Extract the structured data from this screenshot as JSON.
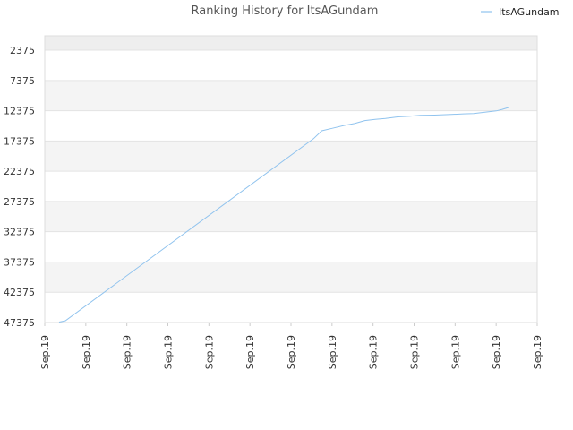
{
  "chart_data": {
    "type": "line",
    "title": "Ranking History for ItsAGundam",
    "xlabel": "",
    "ylabel": "",
    "y_inverted": true,
    "ylim": [
      47375,
      0
    ],
    "yticks": [
      2375,
      7375,
      12375,
      17375,
      22375,
      27375,
      32375,
      37375,
      42375,
      47375
    ],
    "ytick_labels": [
      "2375",
      "7375",
      "12375",
      "17375",
      "22375",
      "27375",
      "32375",
      "37375",
      "42375",
      "47375"
    ],
    "xlim": [
      0,
      12
    ],
    "xtick_labels": [
      "Sep.19",
      "Sep.19",
      "Sep.19",
      "Sep.19",
      "Sep.19",
      "Sep.19",
      "Sep.19",
      "Sep.19",
      "Sep.19",
      "Sep.19",
      "Sep.19",
      "Sep.19",
      "Sep.19"
    ],
    "grid": true,
    "alternating_bands": true,
    "legend_position": "top-right",
    "series": [
      {
        "name": "ItsAGundam",
        "color": "#90c3ee",
        "x": [
          0.35,
          0.5,
          6.55,
          6.75,
          7.0,
          7.3,
          7.55,
          7.8,
          8.05,
          8.3,
          8.6,
          8.9,
          9.15,
          9.5,
          9.9,
          10.2,
          10.45,
          10.75,
          11.0,
          11.15,
          11.3
        ],
        "y": [
          47300,
          47100,
          17000,
          15700,
          15300,
          14800,
          14500,
          14000,
          13800,
          13650,
          13400,
          13300,
          13150,
          13100,
          13000,
          12900,
          12850,
          12600,
          12400,
          12150,
          11850
        ]
      }
    ]
  }
}
